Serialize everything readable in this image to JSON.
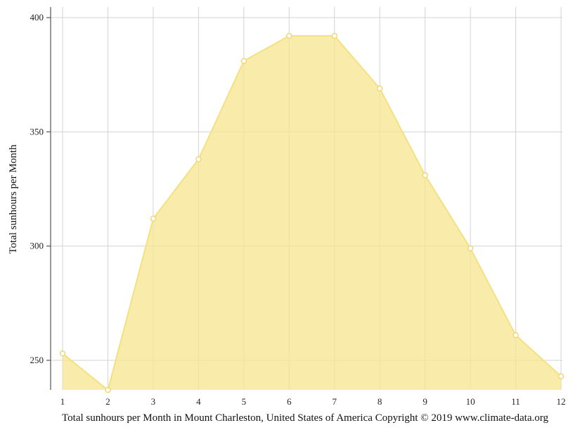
{
  "chart_data": {
    "type": "area",
    "title": "",
    "xlabel": "Total sunhours per Month in Mount Charleston, United States of America Copyright © 2019 www.climate-data.org",
    "ylabel": "Total sunhours per Month",
    "x": [
      1,
      2,
      3,
      4,
      5,
      6,
      7,
      8,
      9,
      10,
      11,
      12
    ],
    "x_tick_labels": [
      "1",
      "2",
      "3",
      "4",
      "5",
      "6",
      "7",
      "8",
      "9",
      "10",
      "11",
      "12"
    ],
    "y_ticks": [
      250,
      300,
      350,
      400
    ],
    "y_tick_labels": [
      "250",
      "300",
      "350",
      "400"
    ],
    "ylim": [
      237,
      405
    ],
    "xlim": [
      1,
      12
    ],
    "grid": true,
    "series": [
      {
        "values": [
          253,
          237,
          312,
          338,
          381,
          392,
          392,
          369,
          331,
          299,
          261,
          243
        ],
        "color": "#f7e58f",
        "line_color": "#f5e080",
        "marker_fill": "#ffffff",
        "marker_stroke": "#eed77a"
      }
    ]
  }
}
